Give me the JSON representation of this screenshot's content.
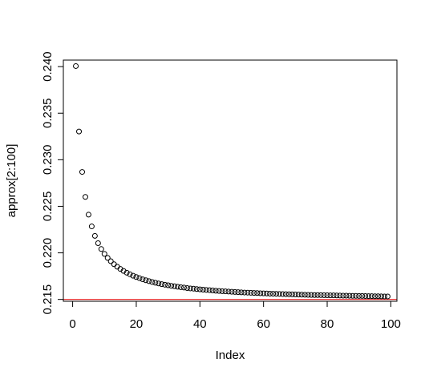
{
  "chart_data": {
    "type": "scatter",
    "title": "",
    "xlabel": "Index",
    "ylabel": "approx[2:100]",
    "xlim": [
      -2.92,
      101.92
    ],
    "ylim": [
      0.2148,
      0.2407
    ],
    "x_ticks": [
      0,
      20,
      40,
      60,
      80,
      100
    ],
    "x_tick_labels": [
      "0",
      "20",
      "40",
      "60",
      "80",
      "100"
    ],
    "y_ticks": [
      0.215,
      0.22,
      0.225,
      0.23,
      0.235,
      0.24
    ],
    "y_tick_labels": [
      "0.215",
      "0.220",
      "0.225",
      "0.230",
      "0.235",
      "0.240"
    ],
    "grid": false,
    "legend": "none",
    "marker": "open-circle",
    "point_color": "#000000",
    "x": [
      1,
      2,
      3,
      4,
      5,
      6,
      7,
      8,
      9,
      10,
      11,
      12,
      13,
      14,
      15,
      16,
      17,
      18,
      19,
      20,
      21,
      22,
      23,
      24,
      25,
      26,
      27,
      28,
      29,
      30,
      31,
      32,
      33,
      34,
      35,
      36,
      37,
      38,
      39,
      40,
      41,
      42,
      43,
      44,
      45,
      46,
      47,
      48,
      49,
      50,
      51,
      52,
      53,
      54,
      55,
      56,
      57,
      58,
      59,
      60,
      61,
      62,
      63,
      64,
      65,
      66,
      67,
      68,
      69,
      70,
      71,
      72,
      73,
      74,
      75,
      76,
      77,
      78,
      79,
      80,
      81,
      82,
      83,
      84,
      85,
      86,
      87,
      88,
      89,
      90,
      91,
      92,
      93,
      94,
      95,
      96,
      97,
      98,
      99
    ],
    "values": [
      0.24006,
      0.23303,
      0.22869,
      0.22601,
      0.2241,
      0.22284,
      0.22182,
      0.22104,
      0.22041,
      0.21989,
      0.21946,
      0.2191,
      0.21878,
      0.21851,
      0.21827,
      0.21806,
      0.21787,
      0.2177,
      0.21754,
      0.2174,
      0.21728,
      0.21716,
      0.21706,
      0.21696,
      0.21687,
      0.21679,
      0.21671,
      0.21664,
      0.21658,
      0.21652,
      0.21646,
      0.21641,
      0.21636,
      0.21631,
      0.21627,
      0.21622,
      0.21618,
      0.21615,
      0.21611,
      0.21608,
      0.21605,
      0.21602,
      0.21599,
      0.21596,
      0.21593,
      0.21591,
      0.21588,
      0.21586,
      0.21584,
      0.21582,
      0.2158,
      0.21578,
      0.21576,
      0.21574,
      0.21573,
      0.21571,
      0.21569,
      0.21568,
      0.21566,
      0.21565,
      0.21564,
      0.21562,
      0.21561,
      0.2156,
      0.21559,
      0.21557,
      0.21556,
      0.21555,
      0.21554,
      0.21553,
      0.21552,
      0.21551,
      0.2155,
      0.21549,
      0.21548,
      0.21547,
      0.21547,
      0.21546,
      0.21545,
      0.21544,
      0.21543,
      0.21543,
      0.21542,
      0.21541,
      0.2154,
      0.2154,
      0.21539,
      0.21538,
      0.21538,
      0.21537,
      0.21537,
      0.21536,
      0.21535,
      0.21535,
      0.21534,
      0.21534,
      0.21533,
      0.21532,
      0.21532
    ],
    "reference_line": {
      "orientation": "horizontal",
      "y": 0.215,
      "color": "#e41a1c"
    }
  }
}
